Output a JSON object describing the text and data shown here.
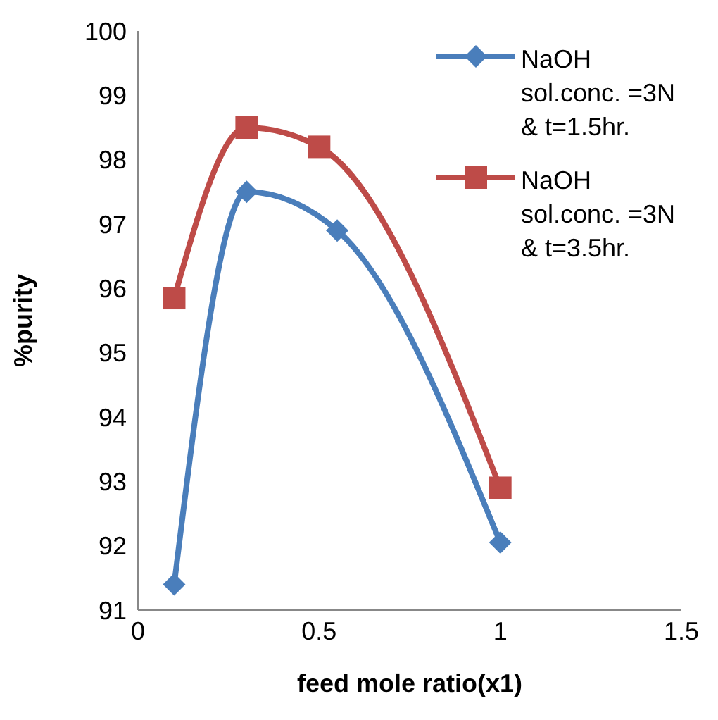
{
  "chart_data": {
    "type": "line",
    "xlabel": "feed mole ratio(x1)",
    "ylabel": "%purity",
    "xlim": [
      0,
      1.5
    ],
    "xticks": [
      0,
      0.5,
      1,
      1.5
    ],
    "ylim": [
      91,
      100
    ],
    "yticks": [
      91,
      92,
      93,
      94,
      95,
      96,
      97,
      98,
      99,
      100
    ],
    "legend": "top right",
    "line_style": "solid",
    "series": [
      {
        "name": "NaOH sol.conc. =3N & t=1.5hr.",
        "color": "#4a7ebb",
        "marker": "diamond",
        "x": [
          0.1,
          0.3,
          0.55,
          1
        ],
        "values": [
          91.4,
          97.5,
          96.9,
          92.05
        ]
      },
      {
        "name": "NaOH sol.conc. =3N & t=3.5hr.",
        "color": "#be4b48",
        "marker": "square",
        "x": [
          0.1,
          0.3,
          0.5,
          1
        ],
        "values": [
          95.85,
          98.5,
          98.2,
          92.9
        ]
      }
    ]
  }
}
